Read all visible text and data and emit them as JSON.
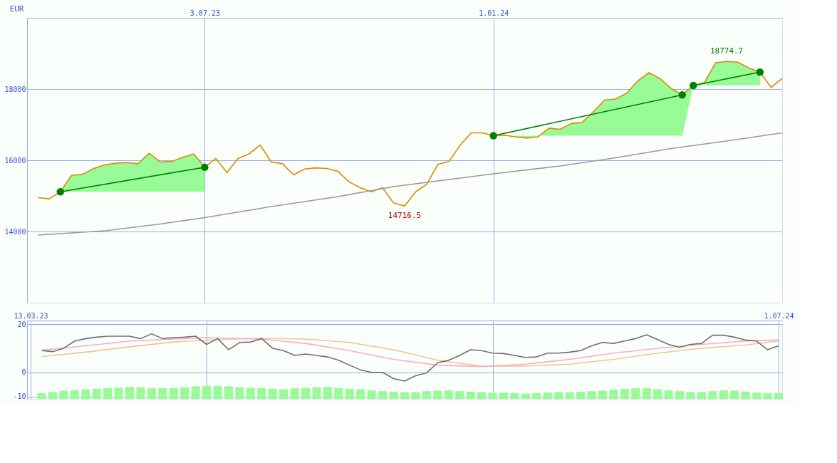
{
  "chart_data": [
    {
      "type": "line",
      "ylabel": "EUR",
      "xlim": [
        "2023-03-13",
        "2024-07-01"
      ],
      "xticks": [
        {
          "value": "2023-07-03",
          "label": "3.07.23"
        },
        {
          "value": "2024-01-01",
          "label": "1.01.24"
        }
      ],
      "ylim": [
        12000,
        20000
      ],
      "yticks": [
        14000,
        16000,
        18000
      ],
      "grid": true,
      "annotations": [
        {
          "text": "18774.7",
          "x": "2024-05-27",
          "y": 18775
        },
        {
          "text": "14716.5",
          "x": "2023-11-06",
          "y": 14717
        }
      ],
      "x": [
        "2023-03-20",
        "2023-03-27",
        "2023-04-03",
        "2023-04-10",
        "2023-04-17",
        "2023-04-24",
        "2023-05-01",
        "2023-05-08",
        "2023-05-15",
        "2023-05-22",
        "2023-05-29",
        "2023-06-05",
        "2023-06-12",
        "2023-06-19",
        "2023-06-26",
        "2023-07-03",
        "2023-07-10",
        "2023-07-17",
        "2023-07-24",
        "2023-07-31",
        "2023-08-07",
        "2023-08-14",
        "2023-08-21",
        "2023-08-28",
        "2023-09-04",
        "2023-09-11",
        "2023-09-18",
        "2023-09-25",
        "2023-10-02",
        "2023-10-09",
        "2023-10-16",
        "2023-10-23",
        "2023-10-30",
        "2023-11-06",
        "2023-11-13",
        "2023-11-20",
        "2023-11-27",
        "2023-12-04",
        "2023-12-11",
        "2023-12-18",
        "2023-12-25",
        "2024-01-01",
        "2024-01-08",
        "2024-01-15",
        "2024-01-22",
        "2024-01-29",
        "2024-02-05",
        "2024-02-12",
        "2024-02-19",
        "2024-02-26",
        "2024-03-04",
        "2024-03-11",
        "2024-03-18",
        "2024-03-25",
        "2024-04-01",
        "2024-04-08",
        "2024-04-15",
        "2024-04-22",
        "2024-04-29",
        "2024-05-06",
        "2024-05-13",
        "2024-05-20",
        "2024-05-27",
        "2024-06-03",
        "2024-06-10",
        "2024-06-17",
        "2024-06-24",
        "2024-07-01"
      ],
      "series": [
        {
          "color": "#d98c00",
          "values": [
            14951,
            14918,
            15115,
            15574,
            15607,
            15770,
            15869,
            15918,
            15934,
            15902,
            16197,
            15951,
            15967,
            16082,
            16180,
            15803,
            16049,
            15656,
            16049,
            16180,
            16426,
            15951,
            15902,
            15590,
            15754,
            15787,
            15770,
            15689,
            15393,
            15230,
            15115,
            15230,
            14803,
            14717,
            15115,
            15328,
            15885,
            15967,
            16426,
            16770,
            16770,
            16689,
            16705,
            16656,
            16623,
            16656,
            16902,
            16869,
            17033,
            17066,
            17361,
            17689,
            17721,
            17885,
            18230,
            18459,
            18295,
            18016,
            17836,
            18098,
            18180,
            18738,
            18775,
            18754,
            18590,
            18475,
            18049,
            18295
          ],
          "lower": [
            null,
            null,
            15115,
            15115,
            15115,
            15115,
            15115,
            15115,
            15115,
            15115,
            15115,
            15115,
            15115,
            15115,
            15115,
            15115,
            null,
            null,
            null,
            null,
            null,
            null,
            null,
            null,
            null,
            null,
            null,
            null,
            null,
            null,
            null,
            null,
            null,
            null,
            null,
            null,
            null,
            null,
            null,
            null,
            null,
            16690,
            16690,
            16690,
            16690,
            16690,
            16690,
            16690,
            16690,
            16690,
            16690,
            16690,
            16690,
            16690,
            16690,
            16690,
            16690,
            16690,
            16690,
            18100,
            18100,
            18100,
            18100,
            18100,
            18100,
            18100,
            null,
            null
          ],
          "upper": [
            null,
            null,
            15115,
            15574,
            15607,
            15770,
            15869,
            15918,
            15934,
            15902,
            16197,
            15951,
            15967,
            16082,
            16180,
            15803,
            null,
            null,
            null,
            null,
            null,
            null,
            null,
            null,
            null,
            null,
            null,
            null,
            null,
            null,
            null,
            null,
            null,
            null,
            null,
            null,
            null,
            null,
            null,
            null,
            null,
            16689,
            16705,
            16656,
            16623,
            16656,
            16902,
            16869,
            17033,
            17066,
            17361,
            17689,
            17721,
            17885,
            18230,
            18459,
            18295,
            18016,
            17836,
            18098,
            18180,
            18738,
            18775,
            18754,
            18590,
            18475,
            null,
            null
          ]
        },
        {
          "color": "#999999",
          "x": [
            "2023-03-20",
            "2023-05-01",
            "2023-06-05",
            "2023-07-03",
            "2023-08-14",
            "2023-09-25",
            "2023-10-30",
            "2023-12-04",
            "2024-01-01",
            "2024-02-12",
            "2024-03-18",
            "2024-04-22",
            "2024-05-27",
            "2024-07-01"
          ],
          "values": [
            13900,
            14020,
            14210,
            14390,
            14700,
            14980,
            15260,
            15460,
            15620,
            15840,
            16070,
            16330,
            16540,
            16770
          ]
        },
        {
          "type": "line",
          "color": "#008000",
          "marker": "circle",
          "x": [
            "2023-04-03",
            "2023-07-03"
          ],
          "values": [
            15115,
            15803
          ]
        },
        {
          "type": "line",
          "color": "#008000",
          "marker": "circle",
          "x": [
            "2024-01-01",
            "2024-04-29"
          ],
          "values": [
            16690,
            17836
          ]
        },
        {
          "type": "line",
          "color": "#008000",
          "marker": "circle",
          "x": [
            "2024-05-06",
            "2024-06-17"
          ],
          "values": [
            18100,
            18475
          ]
        }
      ]
    },
    {
      "type": "line",
      "xlim": [
        "2023-03-13",
        "2024-07-01"
      ],
      "xticks": [
        {
          "value": "2023-03-13",
          "label": "13.03.23"
        },
        {
          "value": "2023-07-03",
          "label": null
        },
        {
          "value": "2024-01-01",
          "label": null
        },
        {
          "value": "2024-07-01",
          "label": "1.07.24"
        }
      ],
      "ylim": [
        -11,
        21.5
      ],
      "yticks": [
        -10,
        0,
        20
      ],
      "grid": true,
      "x": [
        "2023-03-20",
        "2023-03-27",
        "2023-04-03",
        "2023-04-10",
        "2023-04-17",
        "2023-04-24",
        "2023-05-01",
        "2023-05-08",
        "2023-05-15",
        "2023-05-22",
        "2023-05-29",
        "2023-06-05",
        "2023-06-12",
        "2023-06-19",
        "2023-06-26",
        "2023-07-03",
        "2023-07-10",
        "2023-07-17",
        "2023-07-24",
        "2023-07-31",
        "2023-08-07",
        "2023-08-14",
        "2023-08-21",
        "2023-08-28",
        "2023-09-04",
        "2023-09-11",
        "2023-09-18",
        "2023-09-25",
        "2023-10-02",
        "2023-10-09",
        "2023-10-16",
        "2023-10-23",
        "2023-10-30",
        "2023-11-06",
        "2023-11-13",
        "2023-11-20",
        "2023-11-27",
        "2023-12-04",
        "2023-12-11",
        "2023-12-18",
        "2023-12-25",
        "2024-01-01",
        "2024-01-08",
        "2024-01-15",
        "2024-01-22",
        "2024-01-29",
        "2024-02-05",
        "2024-02-12",
        "2024-02-19",
        "2024-02-26",
        "2024-03-04",
        "2024-03-11",
        "2024-03-18",
        "2024-03-25",
        "2024-04-01",
        "2024-04-08",
        "2024-04-15",
        "2024-04-22",
        "2024-04-29",
        "2024-05-06",
        "2024-05-13",
        "2024-05-20",
        "2024-05-27",
        "2024-06-03",
        "2024-06-10",
        "2024-06-17",
        "2024-06-24",
        "2024-07-01"
      ],
      "series": [
        {
          "type": "bar",
          "color": "#98fb98",
          "values": [
            2.4,
            2.8,
            3.4,
            3.6,
            4,
            4.2,
            4.4,
            4.6,
            5,
            4.8,
            4.4,
            4.4,
            4.6,
            4.8,
            5.2,
            5.4,
            5.4,
            5.2,
            4.8,
            4.6,
            4.4,
            4.2,
            4,
            4.4,
            4.6,
            4.8,
            5,
            4.6,
            4.2,
            4,
            3.6,
            3.2,
            3,
            2.8,
            2.8,
            3.2,
            3.4,
            3.6,
            3.2,
            3,
            2.8,
            2.6,
            2.6,
            2.4,
            2.2,
            2.4,
            2.6,
            2.8,
            2.8,
            3,
            3.2,
            3.4,
            3.8,
            4.2,
            4.4,
            4.4,
            4,
            3.6,
            3.2,
            2.8,
            2.8,
            3.2,
            3.6,
            3.4,
            3,
            2.6,
            2.4,
            2.4
          ],
          "base": [
            -11,
            -11,
            -11,
            -11,
            -11,
            -11,
            -11,
            -11,
            -11,
            -11,
            -11,
            -11,
            -11,
            -11,
            -11,
            -11,
            -11,
            -11,
            -11,
            -11,
            -11,
            -11,
            -11,
            -11,
            -11,
            -11,
            -11,
            -11,
            -11,
            -11,
            -11,
            -11,
            -11,
            -11,
            -11,
            -11,
            -11,
            -11,
            -11,
            -11,
            -11,
            -11,
            -11,
            -11,
            -11,
            -11,
            -11,
            -11,
            -11,
            -11,
            -11,
            -11,
            -11,
            -11,
            -11,
            -11,
            -11,
            -11,
            -11,
            -11,
            -11,
            -11,
            -11,
            -11,
            -11,
            -11,
            -11,
            -11
          ]
        },
        {
          "type": "line",
          "color": "#e8c898",
          "x": [
            "2023-03-20",
            "2023-04-17",
            "2023-05-15",
            "2023-06-12",
            "2023-07-10",
            "2023-08-07",
            "2023-09-04",
            "2023-10-02",
            "2023-10-30",
            "2023-11-27",
            "2023-12-25",
            "2024-01-22",
            "2024-02-19",
            "2024-03-18",
            "2024-04-15",
            "2024-05-13",
            "2024-06-10",
            "2024-07-01"
          ],
          "values": [
            6.6,
            8.4,
            10.6,
            12.6,
            13.6,
            14.2,
            13.8,
            12.4,
            9.4,
            5,
            2.6,
            2.6,
            3.4,
            5.4,
            8,
            10,
            11.4,
            13
          ]
        },
        {
          "type": "line",
          "color": "#ffaac8",
          "x": [
            "2023-03-20",
            "2023-04-17",
            "2023-05-15",
            "2023-06-12",
            "2023-07-03",
            "2023-08-07",
            "2023-09-04",
            "2023-10-02",
            "2023-10-30",
            "2023-11-27",
            "2023-12-25",
            "2024-01-22",
            "2024-02-19",
            "2024-03-18",
            "2024-04-15",
            "2024-05-13",
            "2024-06-10",
            "2024-07-01"
          ],
          "values": [
            9.2,
            11,
            13,
            13.8,
            14.4,
            13.8,
            12,
            9,
            5.4,
            3,
            2.4,
            3.4,
            5.4,
            8,
            10,
            11.6,
            13,
            13.4
          ]
        },
        {
          "color": "#707070",
          "values": [
            9,
            8.6,
            10,
            13,
            14,
            14.6,
            15,
            15,
            15,
            14,
            16,
            14,
            14.4,
            14.6,
            15,
            11.6,
            14,
            9.4,
            12.4,
            12.6,
            14,
            10,
            9,
            7,
            7.6,
            7,
            6.4,
            5,
            3,
            1,
            0,
            0,
            -2.6,
            -3.6,
            -1.4,
            -0.2,
            4,
            5,
            7,
            9.4,
            9,
            8,
            7.8,
            7,
            6.2,
            6.4,
            8,
            8,
            8.4,
            9,
            11,
            12.4,
            12,
            13,
            14,
            15.6,
            13.6,
            11.6,
            10.4,
            11.6,
            12,
            15.4,
            15.4,
            14.6,
            13.4,
            13,
            9.4,
            11
          ]
        }
      ]
    }
  ]
}
